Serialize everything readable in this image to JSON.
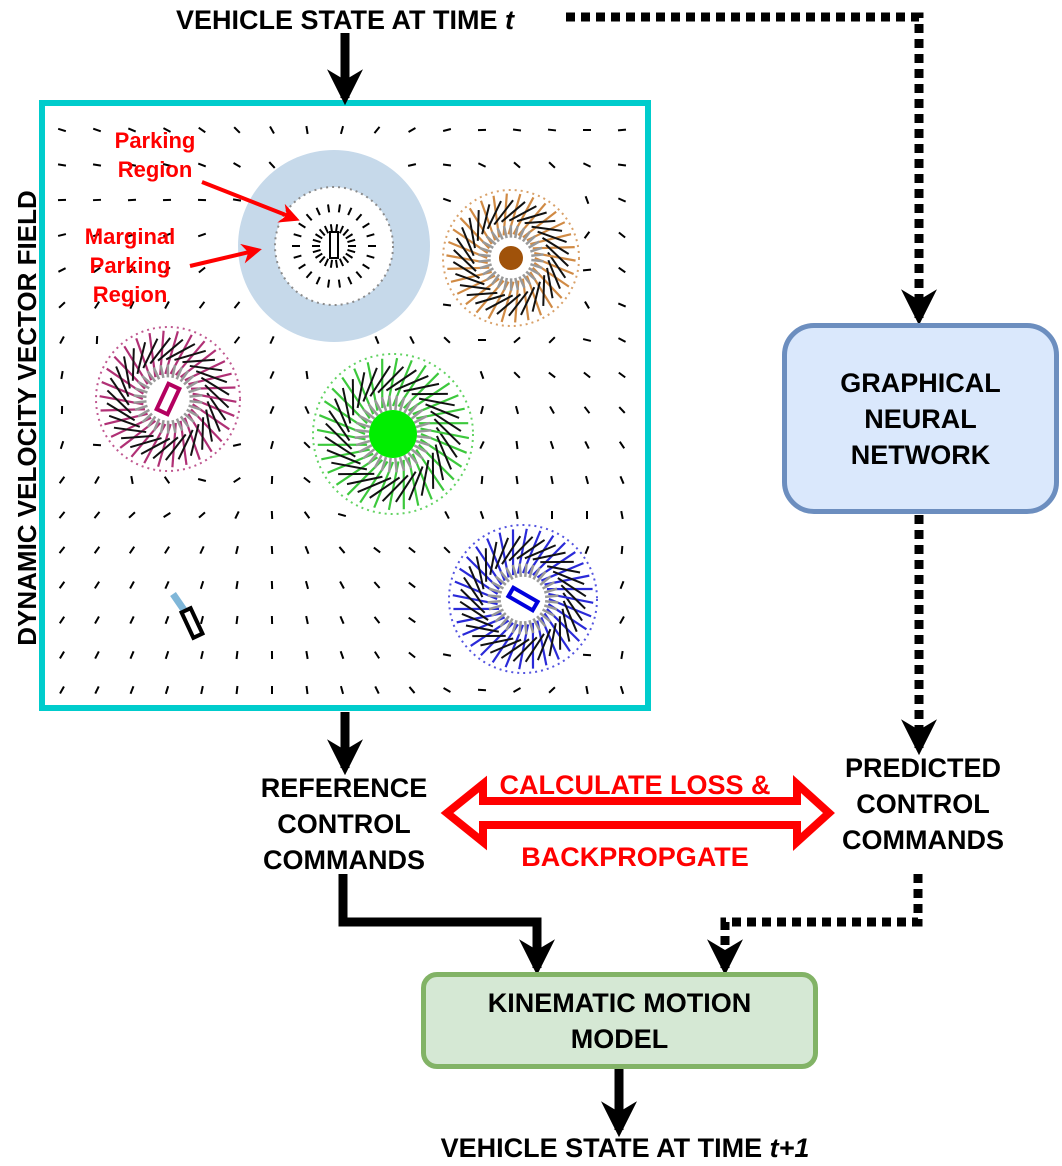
{
  "top_label": {
    "text": "VEHICLE STATE AT TIME ",
    "var": "t"
  },
  "bottom_label": {
    "text": "VEHICLE STATE AT TIME ",
    "var": "t+1"
  },
  "field_label": "DYNAMIC VELOCITY VECTOR FIELD",
  "parking_region_label": [
    "Parking",
    "Region"
  ],
  "marginal_parking_label": [
    "Marginal",
    "Parking",
    "Region"
  ],
  "gnn_box": [
    "GRAPHICAL",
    "NEURAL",
    "NETWORK"
  ],
  "reference_label": [
    "REFERENCE",
    "CONTROL",
    "COMMANDS"
  ],
  "predicted_label": [
    "PREDICTED",
    "CONTROL",
    "COMMANDS"
  ],
  "loss_label_top": "CALCULATE LOSS &",
  "loss_label_bottom": "BACKPROPGATE",
  "kinematic_box": [
    "KINEMATIC MOTION",
    "MODEL"
  ],
  "colors": {
    "field_border": "#00cccc",
    "gnn_fill": "#dae8fc",
    "gnn_stroke": "#6c8ebf",
    "kin_fill": "#d5e8d4",
    "kin_stroke": "#82b366",
    "annotation_red": "#ff0000",
    "parking_halo": "#c6d9ea",
    "brown_obstacle": "#a0520a",
    "brown_vectors": "#d08a44",
    "magenta_obstacle": "#b3005f",
    "magenta_vectors": "#b03075",
    "green_obstacle": "#00ee00",
    "green_vectors": "#3cc83c",
    "blue_obstacle": "#0000dd",
    "blue_vectors": "#2a2ad8",
    "ego_vehicle": "#000000",
    "ego_heading": "#7fb6d8"
  }
}
